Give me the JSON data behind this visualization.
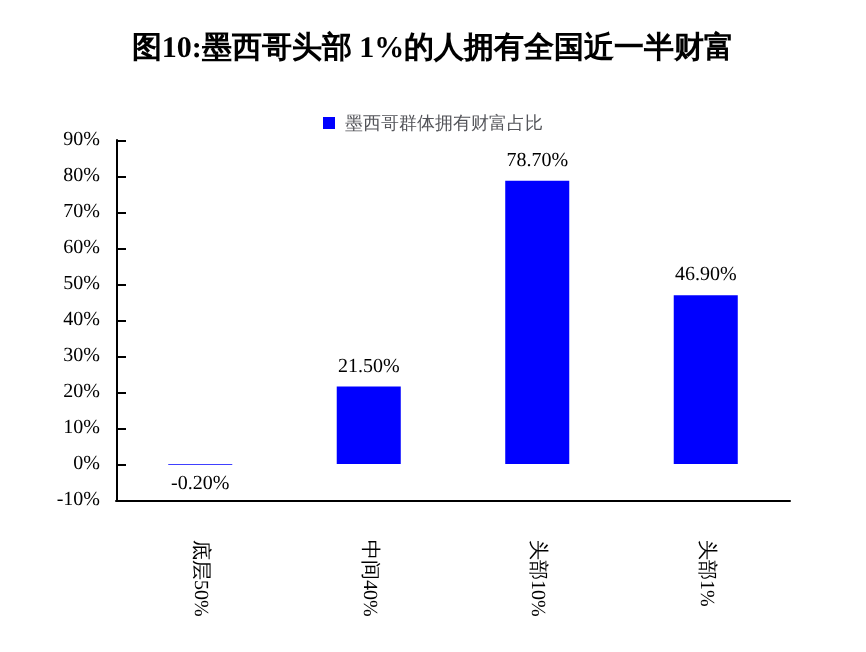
{
  "chart_data": {
    "type": "bar",
    "title": "图10:墨西哥头部 1%的人拥有全国近一半财富",
    "categories": [
      "底层50%",
      "中间40%",
      "头部10%",
      "头部1%"
    ],
    "series": [
      {
        "name": "墨西哥群体拥有财富占比",
        "color": "#0000ff",
        "values": [
          -0.2,
          21.5,
          78.7,
          46.9
        ],
        "value_labels": [
          "-0.20%",
          "21.50%",
          "78.70%",
          "46.90%"
        ]
      }
    ],
    "ylim": [
      -10,
      90
    ],
    "yticks": [
      {
        "value": -10,
        "label": "-10%"
      },
      {
        "value": 0,
        "label": "0%"
      },
      {
        "value": 10,
        "label": "10%"
      },
      {
        "value": 20,
        "label": "20%"
      },
      {
        "value": 30,
        "label": "30%"
      },
      {
        "value": 40,
        "label": "40%"
      },
      {
        "value": 50,
        "label": "50%"
      },
      {
        "value": 60,
        "label": "60%"
      },
      {
        "value": 70,
        "label": "70%"
      },
      {
        "value": 80,
        "label": "80%"
      },
      {
        "value": 90,
        "label": "90%"
      }
    ],
    "grid": false,
    "legend": "top"
  }
}
